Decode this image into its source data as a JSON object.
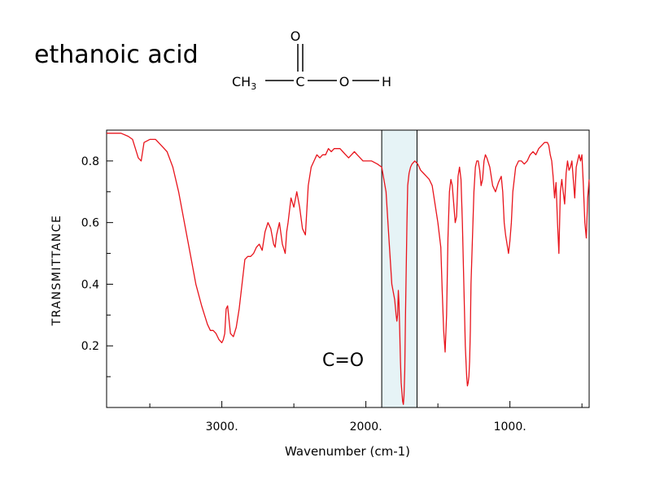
{
  "page": {
    "title": "ethanoic acid",
    "molecule": {
      "ch3": "CH",
      "ch3_sub": "3",
      "carbon": "C",
      "oxygen_top": "O",
      "oxygen": "O",
      "hydrogen": "H"
    }
  },
  "chart_data": {
    "type": "line",
    "title": "",
    "xlabel": "Wavenumber (cm-1)",
    "ylabel": "TRANSMITTANCE",
    "xlim": [
      3800,
      450
    ],
    "ylim": [
      0,
      0.9
    ],
    "x_reversed": true,
    "x_ticks": [
      3000,
      2000,
      1000
    ],
    "x_tick_labels": [
      "3000.",
      "2000.",
      "1000."
    ],
    "y_ticks": [
      0.2,
      0.4,
      0.6,
      0.8
    ],
    "y_tick_labels": [
      "0.2",
      "0.4",
      "0.6",
      "0.8"
    ],
    "line_color": "#e8141c",
    "highlight": {
      "x_from": 1890,
      "x_to": 1645,
      "label": "C=O",
      "fill": "#e6f3f6"
    },
    "series": [
      {
        "x": [
          3800,
          3750,
          3700,
          3650,
          3620,
          3600,
          3580,
          3560,
          3540,
          3500,
          3460,
          3420,
          3380,
          3340,
          3300,
          3260,
          3220,
          3180,
          3140,
          3100,
          3080,
          3060,
          3040,
          3020,
          3000,
          2990,
          2980,
          2970,
          2960,
          2940,
          2920,
          2900,
          2880,
          2860,
          2840,
          2820,
          2800,
          2780,
          2760,
          2740,
          2720,
          2700,
          2680,
          2660,
          2640,
          2630,
          2620,
          2600,
          2580,
          2560,
          2550,
          2540,
          2520,
          2500,
          2480,
          2460,
          2440,
          2420,
          2400,
          2380,
          2360,
          2340,
          2320,
          2300,
          2280,
          2260,
          2240,
          2220,
          2200,
          2180,
          2160,
          2140,
          2120,
          2100,
          2080,
          2060,
          2040,
          2020,
          2000,
          1960,
          1920,
          1890,
          1860,
          1840,
          1820,
          1800,
          1790,
          1785,
          1780,
          1775,
          1770,
          1765,
          1760,
          1755,
          1750,
          1745,
          1740,
          1735,
          1730,
          1725,
          1720,
          1715,
          1710,
          1700,
          1690,
          1680,
          1660,
          1640,
          1620,
          1600,
          1580,
          1560,
          1540,
          1520,
          1500,
          1480,
          1470,
          1460,
          1450,
          1440,
          1430,
          1420,
          1410,
          1400,
          1390,
          1380,
          1370,
          1360,
          1350,
          1340,
          1330,
          1320,
          1310,
          1300,
          1295,
          1290,
          1285,
          1280,
          1275,
          1270,
          1260,
          1250,
          1240,
          1230,
          1220,
          1210,
          1200,
          1190,
          1180,
          1170,
          1160,
          1140,
          1120,
          1100,
          1080,
          1060,
          1050,
          1040,
          1030,
          1020,
          1010,
          1000,
          990,
          980,
          960,
          940,
          920,
          900,
          880,
          860,
          840,
          820,
          800,
          780,
          760,
          740,
          730,
          720,
          710,
          700,
          690,
          680,
          670,
          660,
          650,
          640,
          630,
          620,
          610,
          600,
          590,
          580,
          570,
          560,
          550,
          540,
          530,
          520,
          510,
          500,
          490,
          480,
          470,
          460,
          450
        ],
        "y": [
          0.89,
          0.89,
          0.89,
          0.88,
          0.87,
          0.84,
          0.81,
          0.8,
          0.86,
          0.87,
          0.87,
          0.85,
          0.83,
          0.78,
          0.7,
          0.6,
          0.5,
          0.4,
          0.33,
          0.27,
          0.25,
          0.25,
          0.24,
          0.22,
          0.21,
          0.22,
          0.24,
          0.32,
          0.33,
          0.24,
          0.23,
          0.26,
          0.32,
          0.4,
          0.48,
          0.49,
          0.49,
          0.5,
          0.52,
          0.53,
          0.51,
          0.57,
          0.6,
          0.58,
          0.53,
          0.52,
          0.56,
          0.6,
          0.53,
          0.5,
          0.57,
          0.6,
          0.68,
          0.65,
          0.7,
          0.65,
          0.58,
          0.56,
          0.72,
          0.78,
          0.8,
          0.82,
          0.81,
          0.82,
          0.82,
          0.84,
          0.83,
          0.84,
          0.84,
          0.84,
          0.83,
          0.82,
          0.81,
          0.82,
          0.83,
          0.82,
          0.81,
          0.8,
          0.8,
          0.8,
          0.79,
          0.78,
          0.7,
          0.55,
          0.4,
          0.35,
          0.3,
          0.28,
          0.3,
          0.38,
          0.34,
          0.25,
          0.15,
          0.08,
          0.05,
          0.02,
          0.01,
          0.04,
          0.12,
          0.3,
          0.45,
          0.6,
          0.72,
          0.76,
          0.78,
          0.79,
          0.8,
          0.79,
          0.77,
          0.76,
          0.75,
          0.74,
          0.72,
          0.66,
          0.6,
          0.52,
          0.38,
          0.25,
          0.18,
          0.3,
          0.55,
          0.7,
          0.74,
          0.72,
          0.66,
          0.6,
          0.62,
          0.75,
          0.78,
          0.74,
          0.6,
          0.4,
          0.2,
          0.1,
          0.07,
          0.08,
          0.1,
          0.15,
          0.25,
          0.4,
          0.55,
          0.7,
          0.78,
          0.8,
          0.8,
          0.77,
          0.72,
          0.74,
          0.8,
          0.82,
          0.81,
          0.78,
          0.72,
          0.7,
          0.73,
          0.75,
          0.7,
          0.6,
          0.56,
          0.53,
          0.5,
          0.54,
          0.6,
          0.7,
          0.78,
          0.8,
          0.8,
          0.79,
          0.8,
          0.82,
          0.83,
          0.82,
          0.84,
          0.85,
          0.86,
          0.86,
          0.85,
          0.82,
          0.8,
          0.75,
          0.68,
          0.73,
          0.6,
          0.5,
          0.7,
          0.74,
          0.7,
          0.66,
          0.76,
          0.8,
          0.77,
          0.78,
          0.8,
          0.74,
          0.68,
          0.78,
          0.8,
          0.82,
          0.8,
          0.82,
          0.72,
          0.6,
          0.55,
          0.68,
          0.74
        ]
      }
    ]
  }
}
